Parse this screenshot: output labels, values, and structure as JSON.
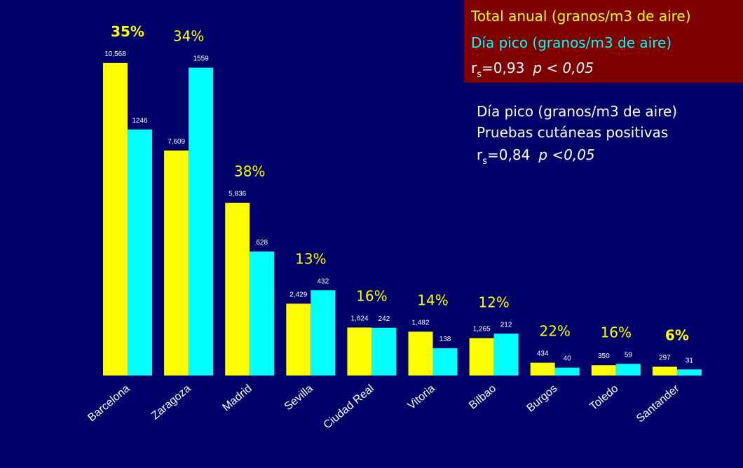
{
  "chart_data": {
    "type": "bar",
    "categories": [
      "Barcelona",
      "Zaragoza",
      "Madrid",
      "Sevilla",
      "Ciudad Real",
      "Vitoria",
      "Bilbao",
      "Burgos",
      "Toledo",
      "Santander"
    ],
    "series": [
      {
        "name": "Total anual  (granos/m3 de aire)",
        "color": "#ffff00",
        "values": [
          10568,
          7609,
          5836,
          2429,
          1624,
          1482,
          1265,
          434,
          350,
          297
        ],
        "value_labels": [
          "10,568",
          "7,609",
          "5,836",
          "2,429",
          "1,624",
          "1,482",
          "1,265",
          "434",
          "350",
          "297"
        ]
      },
      {
        "name": "Día pico (granos/m3 de aire)",
        "color": "#00ffff",
        "axis": "y2",
        "values": [
          1246,
          1559,
          628,
          432,
          242,
          138,
          212,
          40,
          59,
          31
        ]
      }
    ],
    "annotations": [
      "35%",
      "34%",
      "38%",
      "13%",
      "16%",
      "14%",
      "12%",
      "22%",
      "16%",
      "6%"
    ],
    "ylim": [
      0,
      11750
    ],
    "y2lim": [
      0,
      1760
    ],
    "stats": [
      {
        "r": "r",
        "sub": "s",
        "value": "=0,93",
        "p": "p < 0,05"
      },
      {
        "title1": "Día pico  (granos/m3 de aire)",
        "title2": "Pruebas cutáneas positivas",
        "r": "r",
        "sub": "s",
        "value": "=0,84",
        "p": "p <0,05"
      }
    ]
  }
}
